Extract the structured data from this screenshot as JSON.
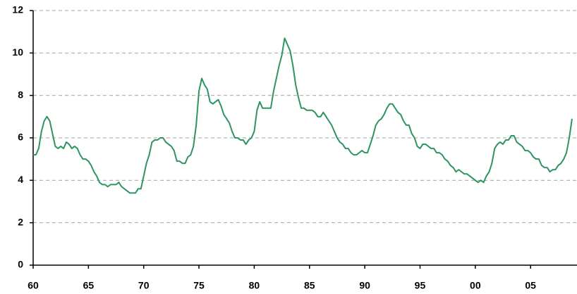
{
  "chart_data": {
    "type": "line",
    "color": "#2e9461",
    "grid": true,
    "xlim": [
      1960,
      2009.2
    ],
    "ylim": [
      0,
      12
    ],
    "yticks": [
      0,
      2,
      4,
      6,
      8,
      10,
      12
    ],
    "xticks": [
      {
        "value": 1960,
        "label": "60"
      },
      {
        "value": 1965,
        "label": "65"
      },
      {
        "value": 1970,
        "label": "70"
      },
      {
        "value": 1975,
        "label": "75"
      },
      {
        "value": 1980,
        "label": "80"
      },
      {
        "value": 1985,
        "label": "85"
      },
      {
        "value": 1990,
        "label": "90"
      },
      {
        "value": 1995,
        "label": "95"
      },
      {
        "value": 2000,
        "label": "00"
      },
      {
        "value": 2005,
        "label": "05"
      }
    ],
    "x": [
      1960,
      1960.25,
      1960.5,
      1960.75,
      1961,
      1961.25,
      1961.5,
      1961.75,
      1962,
      1962.25,
      1962.5,
      1962.75,
      1963,
      1963.25,
      1963.5,
      1963.75,
      1964,
      1964.25,
      1964.5,
      1964.75,
      1965,
      1965.25,
      1965.5,
      1965.75,
      1966,
      1966.25,
      1966.5,
      1966.75,
      1967,
      1967.25,
      1967.5,
      1967.75,
      1968,
      1968.25,
      1968.5,
      1968.75,
      1969,
      1969.25,
      1969.5,
      1969.75,
      1970,
      1970.25,
      1970.5,
      1970.75,
      1971,
      1971.25,
      1971.5,
      1971.75,
      1972,
      1972.25,
      1972.5,
      1972.75,
      1973,
      1973.25,
      1973.5,
      1973.75,
      1974,
      1974.25,
      1974.5,
      1974.75,
      1975,
      1975.25,
      1975.5,
      1975.75,
      1976,
      1976.25,
      1976.5,
      1976.75,
      1977,
      1977.25,
      1977.5,
      1977.75,
      1978,
      1978.25,
      1978.5,
      1978.75,
      1979,
      1979.25,
      1979.5,
      1979.75,
      1980,
      1980.25,
      1980.5,
      1980.75,
      1981,
      1981.25,
      1981.5,
      1981.75,
      1982,
      1982.25,
      1982.5,
      1982.75,
      1983,
      1983.25,
      1983.5,
      1983.75,
      1984,
      1984.25,
      1984.5,
      1984.75,
      1985,
      1985.25,
      1985.5,
      1985.75,
      1986,
      1986.25,
      1986.5,
      1986.75,
      1987,
      1987.25,
      1987.5,
      1987.75,
      1988,
      1988.25,
      1988.5,
      1988.75,
      1989,
      1989.25,
      1989.5,
      1989.75,
      1990,
      1990.25,
      1990.5,
      1990.75,
      1991,
      1991.25,
      1991.5,
      1991.75,
      1992,
      1992.25,
      1992.5,
      1992.75,
      1993,
      1993.25,
      1993.5,
      1993.75,
      1994,
      1994.25,
      1994.5,
      1994.75,
      1995,
      1995.25,
      1995.5,
      1995.75,
      1996,
      1996.25,
      1996.5,
      1996.75,
      1997,
      1997.25,
      1997.5,
      1997.75,
      1998,
      1998.25,
      1998.5,
      1998.75,
      1999,
      1999.25,
      1999.5,
      1999.75,
      2000,
      2000.25,
      2000.5,
      2000.75,
      2001,
      2001.25,
      2001.5,
      2001.75,
      2002,
      2002.25,
      2002.5,
      2002.75,
      2003,
      2003.25,
      2003.5,
      2003.75,
      2004,
      2004.25,
      2004.5,
      2004.75,
      2005,
      2005.25,
      2005.5,
      2005.75,
      2006,
      2006.25,
      2006.5,
      2006.75,
      2007,
      2007.25,
      2007.5,
      2007.75,
      2008,
      2008.25,
      2008.5,
      2008.75
    ],
    "values": [
      5.2,
      5.2,
      5.5,
      6.3,
      6.8,
      7.0,
      6.8,
      6.2,
      5.6,
      5.5,
      5.6,
      5.5,
      5.8,
      5.7,
      5.5,
      5.6,
      5.5,
      5.2,
      5.0,
      5.0,
      4.9,
      4.7,
      4.4,
      4.2,
      3.9,
      3.8,
      3.8,
      3.7,
      3.8,
      3.8,
      3.8,
      3.9,
      3.7,
      3.6,
      3.5,
      3.4,
      3.4,
      3.4,
      3.6,
      3.6,
      4.2,
      4.8,
      5.2,
      5.8,
      5.9,
      5.9,
      6.0,
      6.0,
      5.8,
      5.7,
      5.6,
      5.4,
      4.9,
      4.9,
      4.8,
      4.8,
      5.1,
      5.2,
      5.6,
      6.6,
      8.2,
      8.8,
      8.5,
      8.3,
      7.7,
      7.6,
      7.7,
      7.8,
      7.5,
      7.1,
      6.9,
      6.7,
      6.3,
      6.0,
      6.0,
      5.9,
      5.9,
      5.7,
      5.9,
      6.0,
      6.3,
      7.3,
      7.7,
      7.4,
      7.4,
      7.4,
      7.4,
      8.2,
      8.8,
      9.4,
      9.9,
      10.7,
      10.4,
      10.1,
      9.4,
      8.5,
      7.9,
      7.4,
      7.4,
      7.3,
      7.3,
      7.3,
      7.2,
      7.0,
      7.0,
      7.2,
      7.0,
      6.8,
      6.6,
      6.3,
      6.0,
      5.8,
      5.7,
      5.5,
      5.5,
      5.3,
      5.2,
      5.2,
      5.3,
      5.4,
      5.3,
      5.3,
      5.7,
      6.1,
      6.6,
      6.8,
      6.9,
      7.1,
      7.4,
      7.6,
      7.6,
      7.4,
      7.2,
      7.1,
      6.8,
      6.6,
      6.6,
      6.2,
      6.0,
      5.6,
      5.5,
      5.7,
      5.7,
      5.6,
      5.5,
      5.5,
      5.3,
      5.3,
      5.2,
      5.0,
      4.9,
      4.7,
      4.6,
      4.4,
      4.5,
      4.4,
      4.3,
      4.3,
      4.2,
      4.1,
      4.0,
      3.9,
      4.0,
      3.9,
      4.2,
      4.4,
      4.8,
      5.5,
      5.7,
      5.8,
      5.7,
      5.9,
      5.9,
      6.1,
      6.1,
      5.8,
      5.7,
      5.6,
      5.4,
      5.4,
      5.3,
      5.1,
      5.0,
      5.0,
      4.7,
      4.6,
      4.6,
      4.4,
      4.5,
      4.5,
      4.7,
      4.8,
      5.0,
      5.3,
      6.0,
      6.9
    ]
  }
}
